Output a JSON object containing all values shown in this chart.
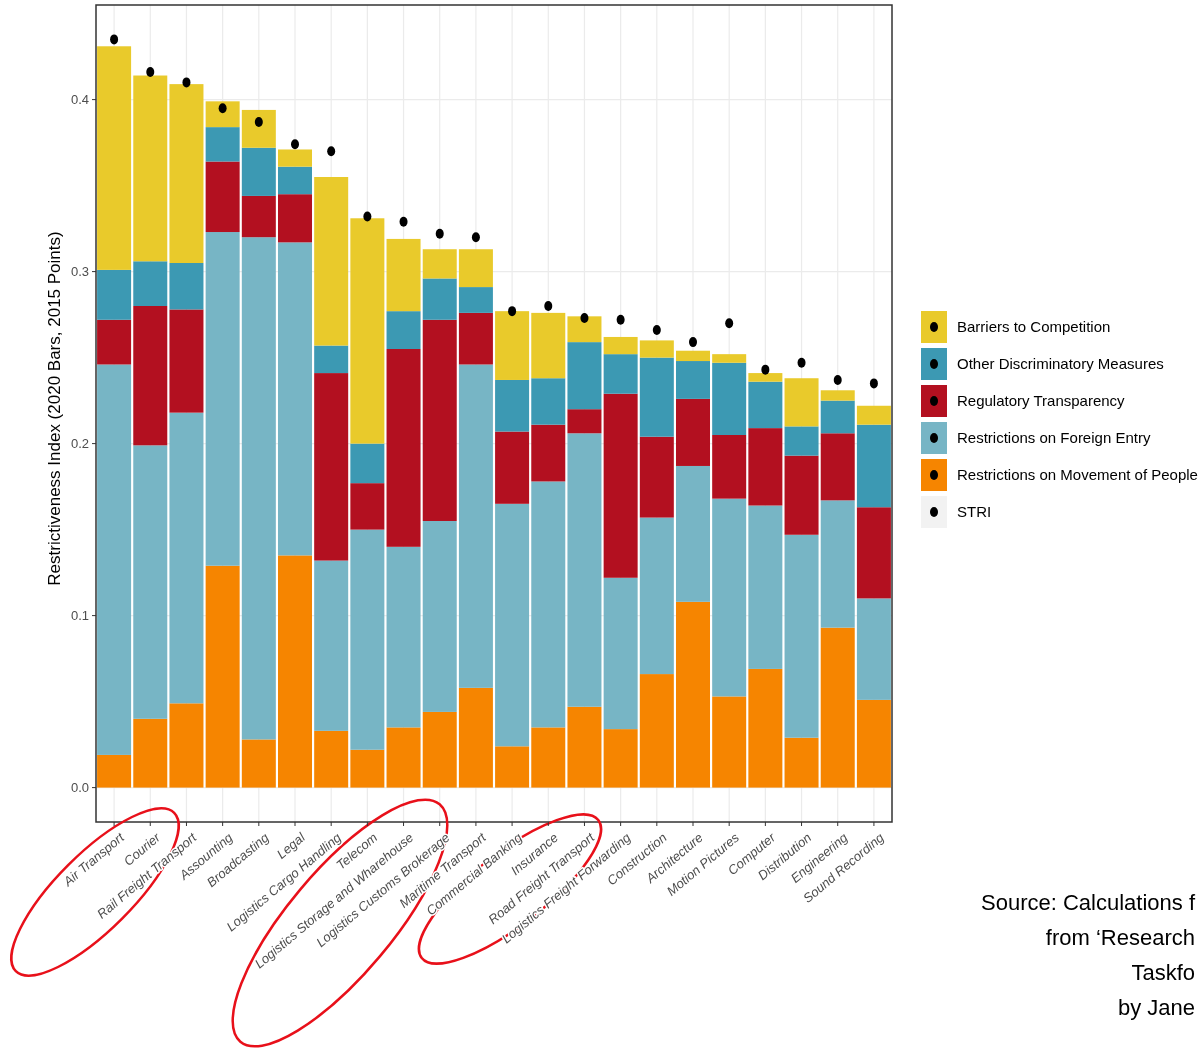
{
  "chart_data": {
    "type": "bar",
    "stacked": true,
    "ylabel": "Restrictiveness Index (2020 Bars, 2015 Points)",
    "categories": [
      "Air Transport",
      "Courier",
      "Rail Freight Transport",
      "Assounting",
      "Broadcasting",
      "Legal",
      "Logistics Cargo Handling",
      "Telecom",
      "Logistics Storage and Wharehouse",
      "Logistics Customs Brokerage",
      "Maritime Transport",
      "Commercial Banking",
      "Insurance",
      "Road Freight Transport",
      "Logistics Freight Forwarding",
      "Construction",
      "Architecture",
      "Motion Pictures",
      "Computer",
      "Distribution",
      "Engineering",
      "Sound Recording"
    ],
    "series": [
      {
        "name": "Restrictions on Movement of People",
        "color": "#f68500",
        "values": [
          0.019,
          0.04,
          0.049,
          0.129,
          0.028,
          0.135,
          0.033,
          0.022,
          0.035,
          0.044,
          0.058,
          0.024,
          0.035,
          0.047,
          0.034,
          0.066,
          0.108,
          0.053,
          0.069,
          0.029,
          0.093,
          0.051
        ]
      },
      {
        "name": "Restrictions on Foreign Entry",
        "color": "#77b5c5",
        "values": [
          0.227,
          0.159,
          0.169,
          0.194,
          0.292,
          0.182,
          0.099,
          0.128,
          0.105,
          0.111,
          0.188,
          0.141,
          0.143,
          0.159,
          0.088,
          0.091,
          0.079,
          0.115,
          0.095,
          0.118,
          0.074,
          0.059
        ]
      },
      {
        "name": "Regulatory Transparency",
        "color": "#b31020",
        "values": [
          0.026,
          0.081,
          0.06,
          0.041,
          0.024,
          0.028,
          0.109,
          0.027,
          0.115,
          0.117,
          0.03,
          0.042,
          0.033,
          0.014,
          0.107,
          0.047,
          0.039,
          0.037,
          0.045,
          0.046,
          0.039,
          0.053
        ]
      },
      {
        "name": "Other Discriminatory Measures",
        "color": "#3c99b3",
        "values": [
          0.029,
          0.026,
          0.027,
          0.02,
          0.028,
          0.016,
          0.016,
          0.023,
          0.022,
          0.024,
          0.015,
          0.03,
          0.027,
          0.039,
          0.023,
          0.046,
          0.022,
          0.042,
          0.027,
          0.017,
          0.019,
          0.048
        ]
      },
      {
        "name": "Barriers to Competition",
        "color": "#e9ca2b",
        "values": [
          0.13,
          0.108,
          0.104,
          0.015,
          0.022,
          0.01,
          0.098,
          0.131,
          0.042,
          0.017,
          0.022,
          0.04,
          0.038,
          0.015,
          0.01,
          0.01,
          0.006,
          0.005,
          0.005,
          0.028,
          0.006,
          0.011
        ]
      },
      {
        "name": "STRI",
        "type": "scatter",
        "color": "#000000",
        "values": [
          0.435,
          0.416,
          0.41,
          0.395,
          0.387,
          0.374,
          0.37,
          0.332,
          0.329,
          0.322,
          0.32,
          0.277,
          0.28,
          0.273,
          0.272,
          0.266,
          0.259,
          0.27,
          0.243,
          0.247,
          0.237,
          0.235
        ]
      }
    ],
    "ylim": [
      -0.02,
      0.455
    ],
    "yticks": [
      {
        "value": 0,
        "label": "0.0"
      },
      {
        "value": 0.1,
        "label": "0.1"
      },
      {
        "value": 0.2,
        "label": "0.2"
      },
      {
        "value": 0.3,
        "label": "0.3"
      },
      {
        "value": 0.4,
        "label": "0.4"
      }
    ],
    "grid": true,
    "legend": "right",
    "marker": "circle",
    "annotations": [
      "Source: Calculations f",
      "from ‘Research",
      "Taskfo",
      "by Jane"
    ]
  }
}
